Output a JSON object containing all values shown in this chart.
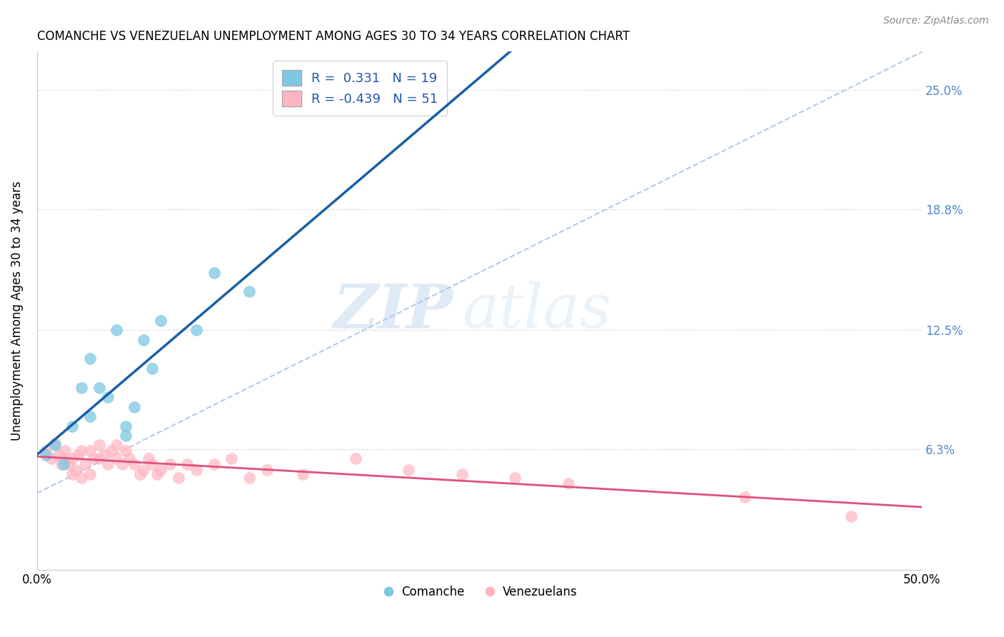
{
  "title": "COMANCHE VS VENEZUELAN UNEMPLOYMENT AMONG AGES 30 TO 34 YEARS CORRELATION CHART",
  "source": "Source: ZipAtlas.com",
  "ylabel": "Unemployment Among Ages 30 to 34 years",
  "xlim": [
    0.0,
    0.5
  ],
  "ylim": [
    0.0,
    0.27
  ],
  "xticks": [
    0.0,
    0.1,
    0.2,
    0.3,
    0.4,
    0.5
  ],
  "xticklabels": [
    "0.0%",
    "",
    "",
    "",
    "",
    "50.0%"
  ],
  "ytick_vals": [
    0.0,
    0.063,
    0.125,
    0.188,
    0.25
  ],
  "ytick_labels_right": [
    "",
    "6.3%",
    "12.5%",
    "18.8%",
    "25.0%"
  ],
  "legend_line1": "R =  0.331   N = 19",
  "legend_line2": "R = -0.439   N = 51",
  "blue_scatter_color": "#7ec8e3",
  "pink_scatter_color": "#ffb6c1",
  "blue_line_color": "#1a5fa8",
  "pink_line_color": "#e05080",
  "dashed_line_color": "#b0c4de",
  "right_label_color": "#5588cc",
  "grid_color": "#dddddd",
  "watermark_zip": "ZIP",
  "watermark_atlas": "atlas",
  "comanche_x": [
    0.005,
    0.01,
    0.015,
    0.02,
    0.025,
    0.03,
    0.03,
    0.035,
    0.04,
    0.045,
    0.05,
    0.05,
    0.055,
    0.06,
    0.065,
    0.07,
    0.09,
    0.1,
    0.12
  ],
  "comanche_y": [
    0.06,
    0.065,
    0.055,
    0.075,
    0.095,
    0.11,
    0.08,
    0.095,
    0.09,
    0.125,
    0.07,
    0.075,
    0.085,
    0.12,
    0.105,
    0.13,
    0.125,
    0.155,
    0.145
  ],
  "venezuelan_x": [
    0.005,
    0.008,
    0.01,
    0.012,
    0.014,
    0.015,
    0.016,
    0.018,
    0.02,
    0.02,
    0.022,
    0.023,
    0.025,
    0.025,
    0.027,
    0.03,
    0.03,
    0.032,
    0.035,
    0.035,
    0.038,
    0.04,
    0.042,
    0.045,
    0.045,
    0.048,
    0.05,
    0.052,
    0.055,
    0.058,
    0.06,
    0.063,
    0.065,
    0.068,
    0.07,
    0.075,
    0.08,
    0.085,
    0.09,
    0.1,
    0.11,
    0.12,
    0.13,
    0.15,
    0.18,
    0.21,
    0.24,
    0.27,
    0.3,
    0.4,
    0.46
  ],
  "venezuelan_y": [
    0.062,
    0.058,
    0.066,
    0.06,
    0.055,
    0.058,
    0.062,
    0.055,
    0.05,
    0.058,
    0.052,
    0.06,
    0.048,
    0.062,
    0.055,
    0.05,
    0.062,
    0.058,
    0.058,
    0.065,
    0.06,
    0.055,
    0.062,
    0.058,
    0.065,
    0.055,
    0.062,
    0.058,
    0.055,
    0.05,
    0.052,
    0.058,
    0.055,
    0.05,
    0.052,
    0.055,
    0.048,
    0.055,
    0.052,
    0.055,
    0.058,
    0.048,
    0.052,
    0.05,
    0.058,
    0.052,
    0.05,
    0.048,
    0.045,
    0.038,
    0.028
  ]
}
